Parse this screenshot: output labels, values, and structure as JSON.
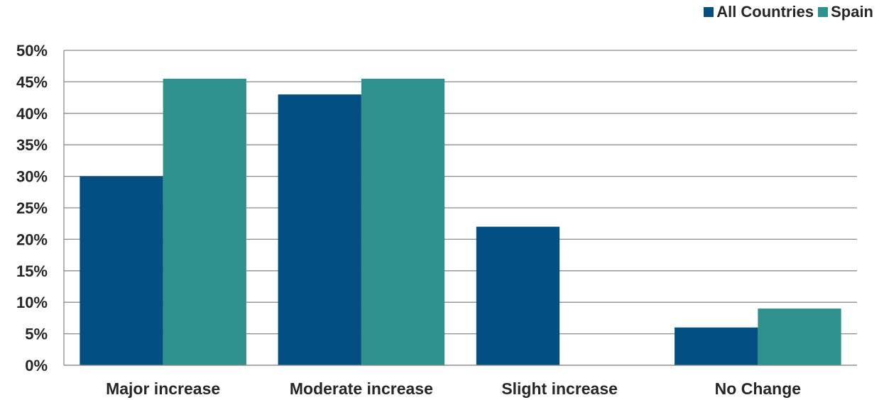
{
  "chart_data": {
    "type": "bar",
    "categories": [
      "Major increase",
      "Moderate increase",
      "Slight increase",
      "No Change"
    ],
    "series": [
      {
        "name": "All Countries",
        "color": "#044f82",
        "values": [
          30,
          43,
          22,
          6
        ]
      },
      {
        "name": "Spain",
        "color": "#2e918e",
        "values": [
          45.5,
          45.5,
          0,
          9
        ]
      }
    ],
    "ylim": [
      0,
      50
    ],
    "yticks": [
      0,
      5,
      10,
      15,
      20,
      25,
      30,
      35,
      40,
      45,
      50
    ],
    "ytick_format": "percent",
    "grid": true,
    "legend": "top-right"
  }
}
